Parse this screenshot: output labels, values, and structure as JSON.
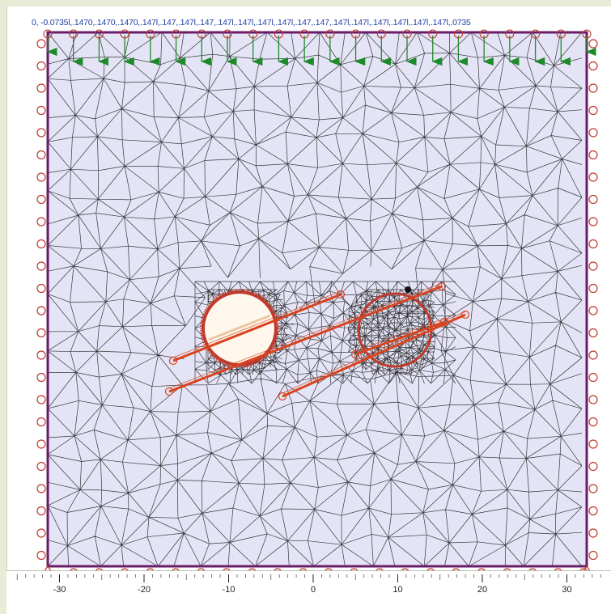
{
  "load_values_label": "0, -0.0735l,.1470,.1470,.1470,.147l,.147,.147l,.147,.147l,.147l,.147l,.147l,.147,.147,.147l,.147l,.147l,.147l,.147l,.147l,.0735",
  "ruler": {
    "ticks": [
      {
        "value": -30,
        "label": "-30"
      },
      {
        "value": -20,
        "label": "-20"
      },
      {
        "value": -10,
        "label": "-10"
      },
      {
        "value": 0,
        "label": "0"
      },
      {
        "value": 10,
        "label": "10"
      },
      {
        "value": 20,
        "label": "20"
      },
      {
        "value": 30,
        "label": "30"
      }
    ]
  },
  "colors": {
    "mesh_background": "#e4e4f6",
    "mesh_lines": "#1a1a1a",
    "boundary": "#6a1b6a",
    "supports": "#c0392b",
    "load_arrows": "#1f8a2a",
    "tunnel_lining": "#c0392b",
    "anchors": "#d9431e",
    "tunnel_interior": "#fff6ec"
  }
}
